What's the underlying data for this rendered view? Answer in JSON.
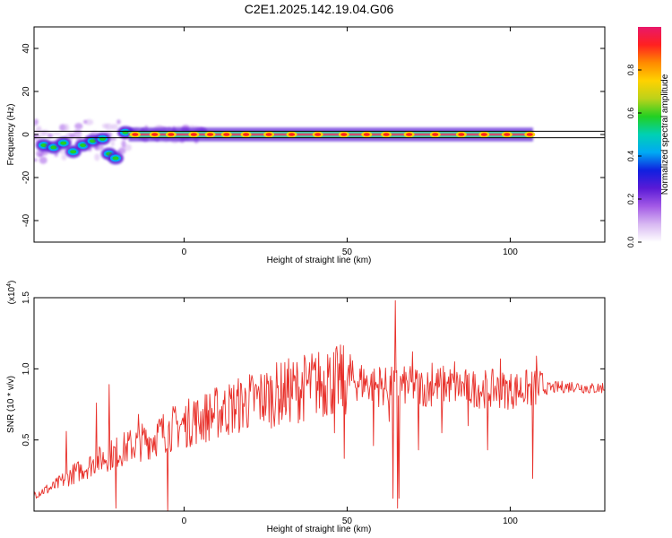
{
  "title": "C2E1.2025.142.19.04.G06",
  "colors": {
    "background": "#ffffff",
    "axis": "#000000",
    "snr_line": "#e8302a",
    "band_fill": "#4bc6a4",
    "band_center": "#e53a6a",
    "colormap": [
      "#ffffff",
      "#d8b8f2",
      "#a35ae6",
      "#5a1ad6",
      "#1020e0",
      "#00aaf4",
      "#00d0b4",
      "#22d022",
      "#bcd21a",
      "#ffd200",
      "#ff8a00",
      "#ff2020",
      "#e8186a"
    ]
  },
  "chart_data": [
    {
      "type": "heatmap",
      "title": "C2E1.2025.142.19.04.G06",
      "xlabel": "Height of straight line (km)",
      "ylabel": "Frequency (Hz)",
      "xlim": [
        -46,
        129
      ],
      "ylim": [
        -50,
        50
      ],
      "x_ticks": [
        "0",
        "50",
        "100"
      ],
      "x_tick_values": [
        0,
        50,
        100
      ],
      "y_ticks": [
        "40",
        "20",
        "0",
        "-20",
        "-40"
      ],
      "y_tick_values": [
        40,
        20,
        0,
        -20,
        -40
      ],
      "horizontal_lines": [
        1.5,
        -1.5
      ],
      "band": {
        "x_start": -46,
        "x_end": 107,
        "freq_center": 0,
        "noisy_until": -17
      },
      "blobs": [
        {
          "x": -43,
          "y": -5
        },
        {
          "x": -40,
          "y": -6
        },
        {
          "x": -37,
          "y": -4
        },
        {
          "x": -34,
          "y": -8
        },
        {
          "x": -31,
          "y": -5
        },
        {
          "x": -28,
          "y": -3
        },
        {
          "x": -25,
          "y": -2
        },
        {
          "x": -23,
          "y": -9
        },
        {
          "x": -21,
          "y": -11
        },
        {
          "x": -18,
          "y": 1
        }
      ],
      "hotspots": [
        -15,
        -9,
        -4,
        3,
        8,
        13,
        19,
        26,
        33,
        41,
        49,
        56,
        62,
        69,
        77,
        85,
        92,
        99,
        106
      ],
      "colorbar": {
        "label": "Normalized spectral amplitude",
        "range": [
          0,
          1
        ],
        "ticks": [
          "0.0",
          "0.2",
          "0.4",
          "0.6",
          "0.8"
        ],
        "tick_values": [
          0.0,
          0.2,
          0.4,
          0.6,
          0.8
        ]
      }
    },
    {
      "type": "line",
      "xlabel": "Height of straight line (km)",
      "ylabel": "SNR (10 * v/v)",
      "y_multiplier": "(x10",
      "y_multiplier_exp": "4",
      "y_multiplier_close": ")",
      "xlim": [
        -46,
        129
      ],
      "ylim": [
        0,
        15000
      ],
      "x_ticks": [
        "0",
        "50",
        "100"
      ],
      "x_tick_values": [
        0,
        50,
        100
      ],
      "y_ticks": [
        "0.5",
        "1.0",
        "1.5"
      ],
      "y_tick_values": [
        5000,
        10000,
        15000
      ],
      "series": [
        {
          "trend_x": [
            -46,
            -40,
            -35,
            -30,
            -25,
            -20,
            -15,
            -10,
            -5,
            0,
            5,
            10,
            15,
            20,
            25,
            30,
            35,
            40,
            45,
            50,
            55,
            60,
            65,
            70,
            75,
            80,
            85,
            90,
            95,
            100,
            105,
            110,
            115,
            120,
            125,
            129
          ],
          "trend_y": [
            1200,
            1700,
            2500,
            3100,
            3700,
            4200,
            4700,
            5100,
            5700,
            6100,
            6500,
            6900,
            7300,
            7700,
            8000,
            8300,
            8600,
            8900,
            9100,
            9200,
            9100,
            8700,
            8800,
            8800,
            8700,
            8900,
            8700,
            8600,
            8600,
            8500,
            8600,
            8600,
            8700,
            8800,
            8600,
            8700
          ],
          "spikes": [
            {
              "x": -36,
              "y": 5600
            },
            {
              "x": -27,
              "y": 7600
            },
            {
              "x": -23,
              "y": 8900
            },
            {
              "x": -21,
              "y": 200
            },
            {
              "x": -14,
              "y": 6800
            },
            {
              "x": -5,
              "y": 0
            },
            {
              "x": 3,
              "y": 7700
            },
            {
              "x": 12,
              "y": 7800
            },
            {
              "x": 44,
              "y": 11000
            },
            {
              "x": 46,
              "y": 5500
            },
            {
              "x": 49,
              "y": 3700
            },
            {
              "x": 51,
              "y": 11000
            },
            {
              "x": 58,
              "y": 4600
            },
            {
              "x": 60,
              "y": 10100
            },
            {
              "x": 63,
              "y": 6300
            },
            {
              "x": 64,
              "y": 900
            },
            {
              "x": 64.8,
              "y": 14800
            },
            {
              "x": 65.5,
              "y": 200
            },
            {
              "x": 66,
              "y": 900
            },
            {
              "x": 70,
              "y": 11200
            },
            {
              "x": 72,
              "y": 4300
            },
            {
              "x": 74,
              "y": 7400
            },
            {
              "x": 76,
              "y": 10400
            },
            {
              "x": 79,
              "y": 5500
            },
            {
              "x": 83,
              "y": 10500
            },
            {
              "x": 87,
              "y": 6000
            },
            {
              "x": 93,
              "y": 4300
            },
            {
              "x": 97,
              "y": 10700
            },
            {
              "x": 107,
              "y": 2300
            },
            {
              "x": 108,
              "y": 10900
            }
          ]
        }
      ]
    }
  ]
}
